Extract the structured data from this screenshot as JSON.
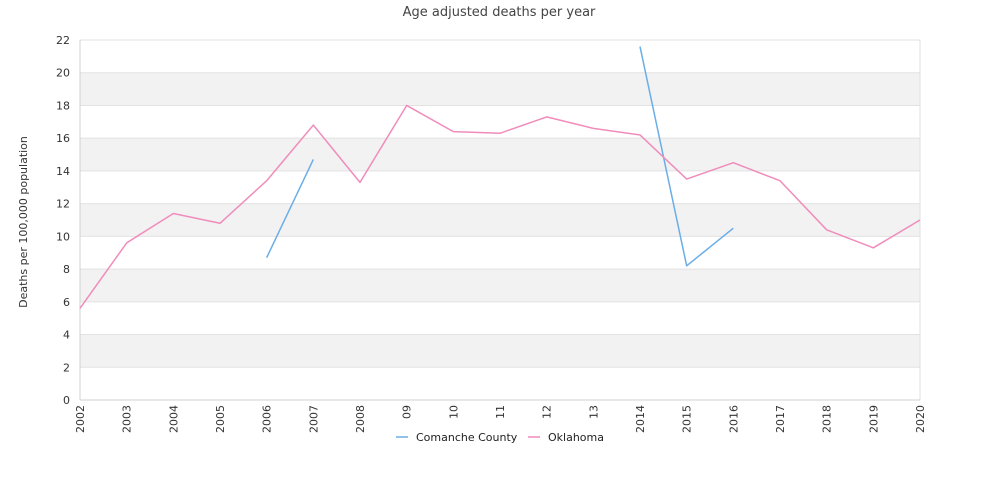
{
  "chart_data": {
    "type": "line",
    "title": "Age adjusted deaths per year",
    "xlabel": "",
    "ylabel": "Deaths per 100,000 population",
    "categories": [
      "2002",
      "2003",
      "2004",
      "2005",
      "2006",
      "2007",
      "2008",
      "09",
      "10",
      "11",
      "12",
      "13",
      "2014",
      "2015",
      "2016",
      "2017",
      "2018",
      "2019",
      "2020"
    ],
    "ylim": [
      0,
      22
    ],
    "yticks": [
      0,
      2,
      4,
      6,
      8,
      10,
      12,
      14,
      16,
      18,
      20,
      22
    ],
    "series": [
      {
        "name": "Comanche County",
        "color": "#6aaee8",
        "values": [
          null,
          null,
          null,
          null,
          8.7,
          14.7,
          null,
          null,
          null,
          null,
          null,
          null,
          21.6,
          8.2,
          10.5,
          null,
          null,
          null,
          null
        ]
      },
      {
        "name": "Oklahoma",
        "color": "#f08cbb",
        "values": [
          5.6,
          9.6,
          11.4,
          10.8,
          13.4,
          16.8,
          13.3,
          18.0,
          16.4,
          16.3,
          17.3,
          16.6,
          16.2,
          13.5,
          14.5,
          13.4,
          10.4,
          9.3,
          11.0
        ]
      }
    ],
    "grid": true,
    "legend": "bottom-center"
  }
}
